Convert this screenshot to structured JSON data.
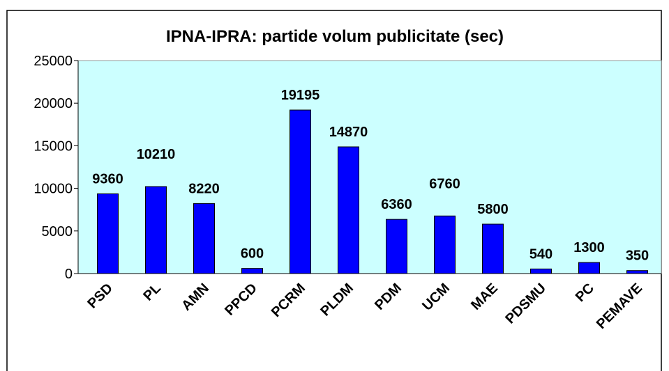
{
  "chart_data": {
    "type": "bar",
    "title": "IPNA-IPRA: partide volum publicitate (sec)",
    "categories": [
      "PSD",
      "PL",
      "AMN",
      "PPCD",
      "PCRM",
      "PLDM",
      "PDM",
      "UCM",
      "MAE",
      "PDSMU",
      "PC",
      "PEMAVE"
    ],
    "values": [
      9360,
      10210,
      8220,
      600,
      19195,
      14870,
      6360,
      6760,
      5800,
      540,
      1300,
      350
    ],
    "color": "#0000ff",
    "ylim": [
      0,
      25000
    ],
    "yticks": [
      0,
      5000,
      10000,
      15000,
      20000,
      25000
    ],
    "grid": false
  }
}
